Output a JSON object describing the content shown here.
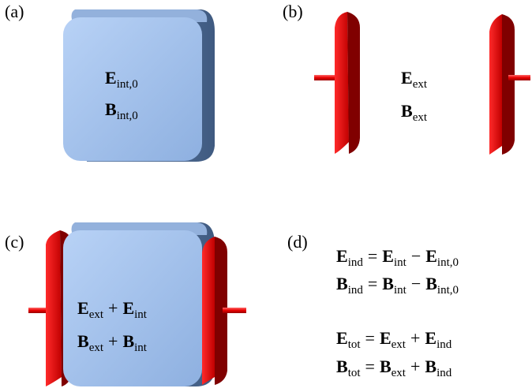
{
  "panels": [
    {
      "label": "(a)",
      "lines": [
        [
          {
            "symbol": "E",
            "subscript": "int,0"
          }
        ],
        [
          {
            "symbol": "B",
            "subscript": "int,0"
          }
        ]
      ]
    },
    {
      "label": "(b)",
      "lines": [
        [
          {
            "symbol": "E",
            "subscript": "ext"
          }
        ],
        [
          {
            "symbol": "B",
            "subscript": "ext"
          }
        ]
      ]
    },
    {
      "label": "(c)",
      "lines": [
        [
          {
            "symbol": "E",
            "subscript": "ext"
          },
          {
            "op": "+"
          },
          {
            "symbol": "E",
            "subscript": "int"
          }
        ],
        [
          {
            "symbol": "B",
            "subscript": "ext"
          },
          {
            "op": "+"
          },
          {
            "symbol": "B",
            "subscript": "int"
          }
        ]
      ]
    },
    {
      "label": "(d)",
      "lines": [
        [
          {
            "symbol": "E",
            "subscript": "ind"
          },
          {
            "op": "="
          },
          {
            "symbol": "E",
            "subscript": "int"
          },
          {
            "op": "−"
          },
          {
            "symbol": "E",
            "subscript": "int,0"
          }
        ],
        [
          {
            "symbol": "B",
            "subscript": "ind"
          },
          {
            "op": "="
          },
          {
            "symbol": "B",
            "subscript": "int"
          },
          {
            "op": "−"
          },
          {
            "symbol": "B",
            "subscript": "int,0"
          }
        ],
        [
          {
            "symbol": "E",
            "subscript": "tot"
          },
          {
            "op": "="
          },
          {
            "symbol": "E",
            "subscript": "ext"
          },
          {
            "op": "+"
          },
          {
            "symbol": "E",
            "subscript": "ind"
          }
        ],
        [
          {
            "symbol": "B",
            "subscript": "tot"
          },
          {
            "op": "="
          },
          {
            "symbol": "B",
            "subscript": "ext"
          },
          {
            "op": "+"
          },
          {
            "symbol": "B",
            "subscript": "ind"
          }
        ]
      ]
    }
  ]
}
